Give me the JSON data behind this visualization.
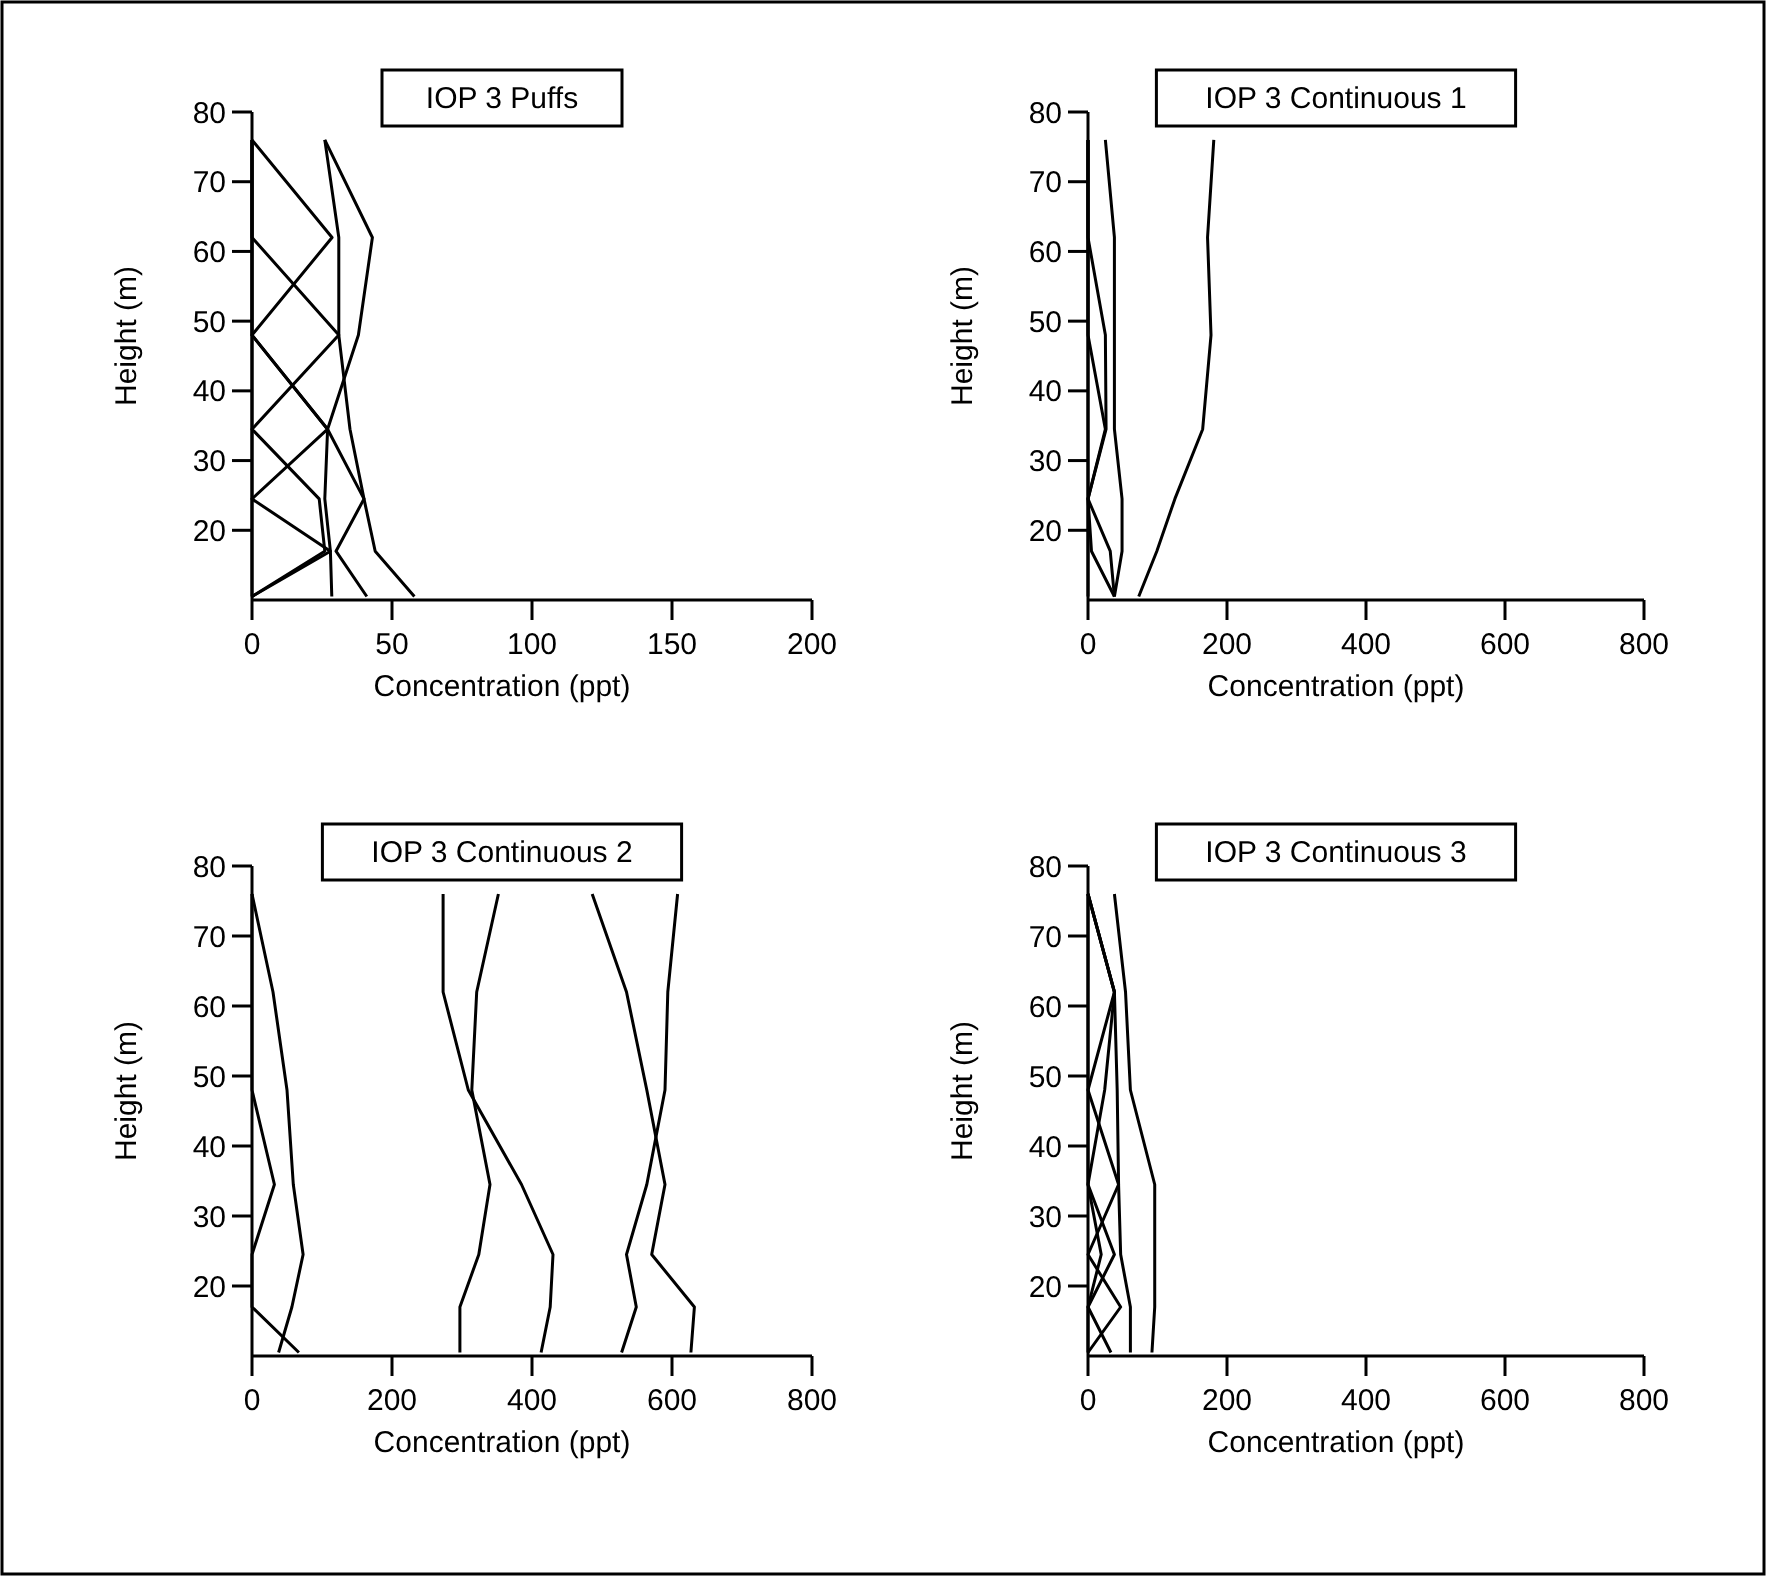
{
  "chart_data": [
    {
      "type": "line",
      "title": "IOP 3 Puffs",
      "xlabel": "Concentration (ppt)",
      "ylabel": "Height (m)",
      "xlim": [
        0,
        200
      ],
      "xticks": [
        0,
        50,
        100,
        150,
        200
      ],
      "ylim": [
        10,
        80
      ],
      "yticks": [
        20,
        30,
        40,
        50,
        60,
        70,
        80
      ],
      "series": [
        {
          "color": "#000000",
          "x": [
            0,
            26,
            24,
            0,
            31,
            0,
            0
          ],
          "values": [
            10.5,
            17,
            24.5,
            34.5,
            48,
            62,
            76
          ]
        },
        {
          "color": "#000000",
          "x": [
            0,
            28,
            0,
            27,
            0,
            28.6,
            0
          ],
          "values": [
            10.5,
            17,
            24.5,
            34.5,
            48,
            62,
            76
          ]
        },
        {
          "color": "#000000",
          "x": [
            28.5,
            28,
            26,
            27,
            38,
            43,
            26
          ],
          "values": [
            10.5,
            17,
            24.5,
            34.5,
            48,
            62,
            76
          ]
        },
        {
          "color": "#000000",
          "x": [
            58,
            44,
            40,
            35,
            31,
            31,
            26
          ],
          "values": [
            10.5,
            17,
            24.5,
            34.5,
            48,
            62,
            76
          ]
        },
        {
          "color": "#000000",
          "x": [
            41,
            30,
            40,
            27,
            0,
            0,
            0
          ],
          "values": [
            10.5,
            17,
            24.5,
            34.5,
            48,
            62,
            76
          ]
        },
        {
          "color": "#000000",
          "x": [
            0,
            0,
            0,
            0,
            0,
            0,
            0
          ],
          "values": [
            10.5,
            17,
            24.5,
            34.5,
            48,
            62,
            76
          ]
        }
      ]
    },
    {
      "type": "line",
      "title": "IOP 3 Continuous 1",
      "xlabel": "Concentration (ppt)",
      "ylabel": "Height (m)",
      "xlim": [
        0,
        800
      ],
      "xticks": [
        0,
        200,
        400,
        600,
        800
      ],
      "ylim": [
        10,
        80
      ],
      "yticks": [
        20,
        30,
        40,
        50,
        60,
        70,
        80
      ],
      "series": [
        {
          "color": "#000000",
          "x": [
            73,
            99,
            125,
            165,
            177,
            172,
            181
          ],
          "values": [
            10.5,
            17,
            24.5,
            34.5,
            48,
            62,
            76
          ]
        },
        {
          "color": "#000000",
          "x": [
            38,
            49,
            49,
            38,
            38,
            38,
            25
          ],
          "values": [
            10.5,
            17,
            24.5,
            34.5,
            48,
            62,
            76
          ]
        },
        {
          "color": "#000000",
          "x": [
            38,
            32,
            0,
            26,
            25,
            0,
            0
          ],
          "values": [
            10.5,
            17,
            24.5,
            34.5,
            48,
            62,
            76
          ]
        },
        {
          "color": "#000000",
          "x": [
            38,
            5,
            0,
            25,
            0,
            0,
            0
          ],
          "values": [
            10.5,
            17,
            24.5,
            34.5,
            48,
            62,
            76
          ]
        },
        {
          "color": "#000000",
          "x": [
            0,
            0,
            0,
            0,
            0,
            0,
            0
          ],
          "values": [
            10.5,
            17,
            24.5,
            34.5,
            48,
            62,
            76
          ]
        }
      ]
    },
    {
      "type": "line",
      "title": "IOP 3 Continuous 2",
      "xlabel": "Concentration (ppt)",
      "ylabel": "Height (m)",
      "xlim": [
        0,
        800
      ],
      "xticks": [
        0,
        200,
        400,
        600,
        800
      ],
      "ylim": [
        10,
        80
      ],
      "yticks": [
        20,
        30,
        40,
        50,
        60,
        70,
        80
      ],
      "series": [
        {
          "color": "#000000",
          "x": [
            413,
            426,
            430,
            385,
            309,
            273,
            273
          ],
          "values": [
            10.5,
            17,
            24.5,
            34.5,
            48,
            62,
            76
          ]
        },
        {
          "color": "#000000",
          "x": [
            297,
            297,
            324,
            340,
            314,
            321,
            352
          ],
          "values": [
            10.5,
            17,
            24.5,
            34.5,
            48,
            62,
            76
          ]
        },
        {
          "color": "#000000",
          "x": [
            627,
            632,
            571,
            590,
            564,
            535,
            486
          ],
          "values": [
            10.5,
            17,
            24.5,
            34.5,
            48,
            62,
            76
          ]
        },
        {
          "color": "#000000",
          "x": [
            528,
            549,
            535,
            564,
            590,
            594,
            608
          ],
          "values": [
            10.5,
            17,
            24.5,
            34.5,
            48,
            62,
            76
          ]
        },
        {
          "color": "#000000",
          "x": [
            38,
            57,
            73,
            59,
            50,
            30,
            0
          ],
          "values": [
            10.5,
            17,
            24.5,
            34.5,
            48,
            62,
            76
          ]
        },
        {
          "color": "#000000",
          "x": [
            67,
            0,
            0,
            32,
            0,
            0,
            0
          ],
          "values": [
            10.5,
            17,
            24.5,
            34.5,
            48,
            62,
            76
          ]
        }
      ]
    },
    {
      "type": "line",
      "title": "IOP 3 Continuous 3",
      "xlabel": "Concentration (ppt)",
      "ylabel": "Height (m)",
      "xlim": [
        0,
        800
      ],
      "xticks": [
        0,
        200,
        400,
        600,
        800
      ],
      "ylim": [
        10,
        80
      ],
      "yticks": [
        20,
        30,
        40,
        50,
        60,
        70,
        80
      ],
      "series": [
        {
          "color": "#000000",
          "x": [
            92,
            96,
            96,
            96,
            61,
            54,
            38
          ],
          "values": [
            10.5,
            17,
            24.5,
            34.5,
            48,
            62,
            76
          ]
        },
        {
          "color": "#000000",
          "x": [
            61,
            61,
            47,
            44,
            42,
            38,
            0
          ],
          "values": [
            10.5,
            17,
            24.5,
            34.5,
            48,
            62,
            76
          ]
        },
        {
          "color": "#000000",
          "x": [
            0,
            47,
            0,
            44,
            0,
            0,
            0
          ],
          "values": [
            10.5,
            17,
            24.5,
            34.5,
            48,
            62,
            76
          ]
        },
        {
          "color": "#000000",
          "x": [
            33,
            0,
            19,
            0,
            24,
            38,
            0
          ],
          "values": [
            10.5,
            17,
            24.5,
            34.5,
            48,
            62,
            76
          ]
        },
        {
          "color": "#000000",
          "x": [
            0,
            0,
            38,
            0,
            0,
            38,
            0
          ],
          "values": [
            10.5,
            17,
            24.5,
            34.5,
            48,
            62,
            76
          ]
        }
      ]
    }
  ]
}
